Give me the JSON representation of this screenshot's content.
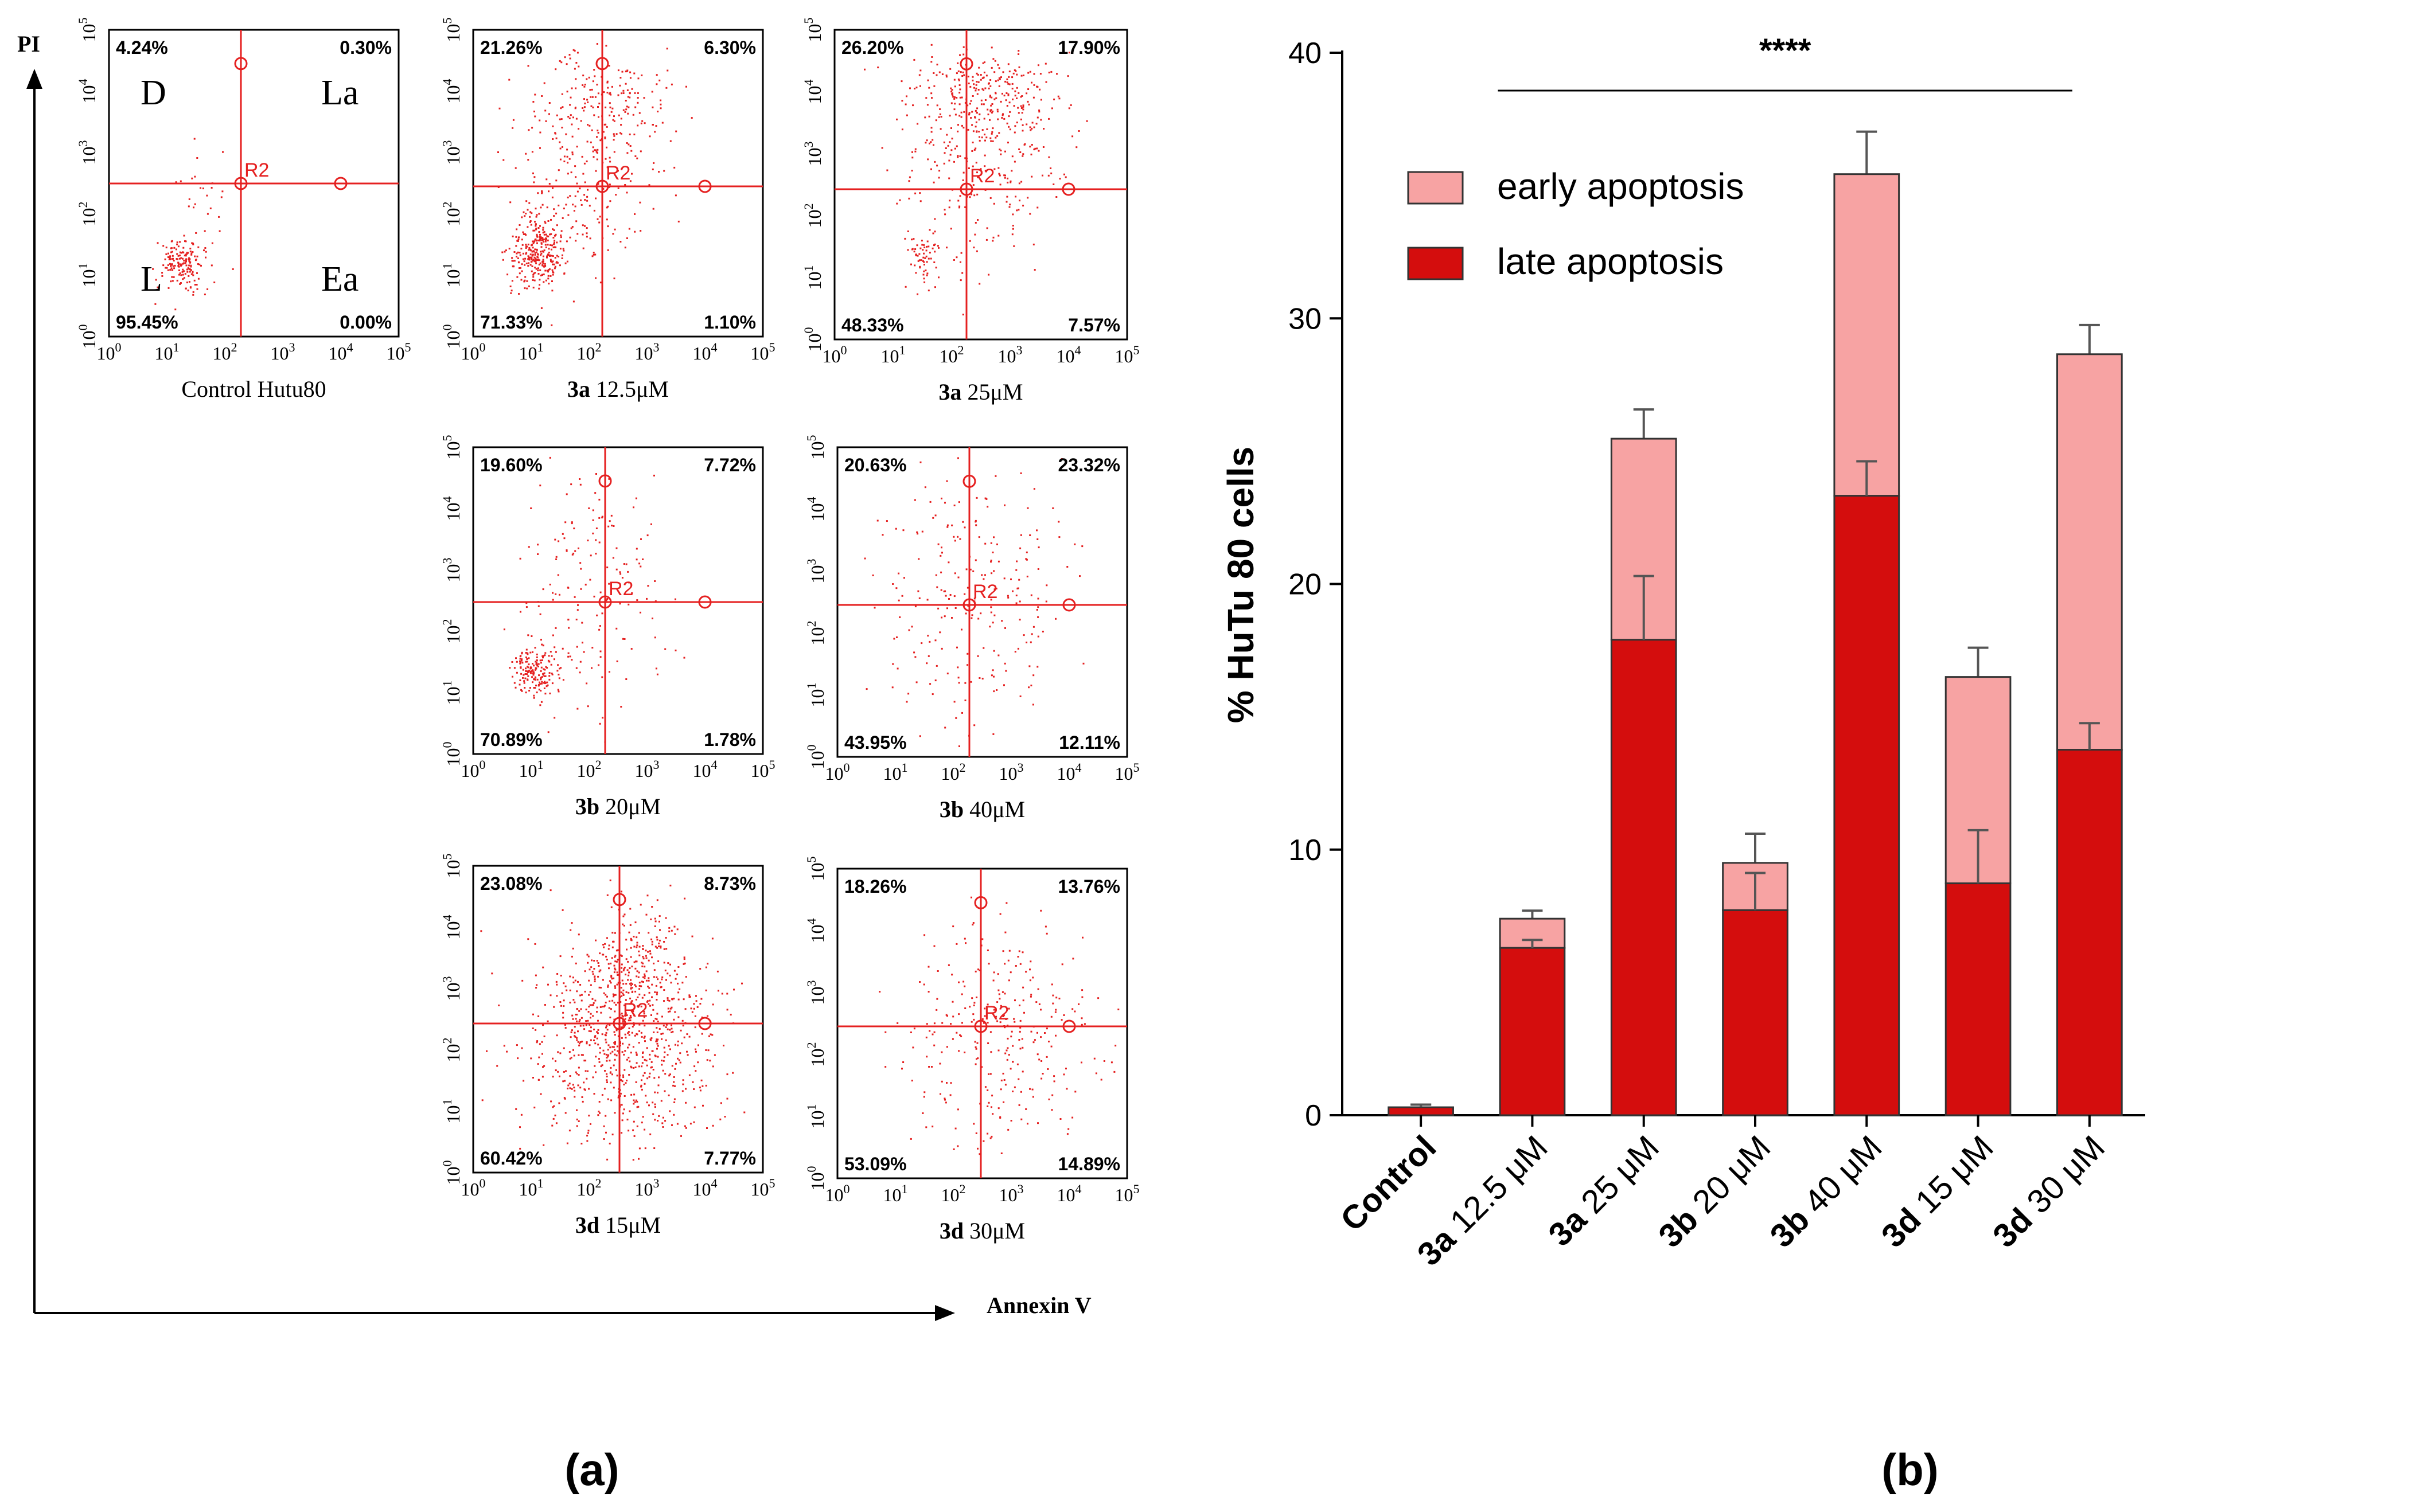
{
  "figure": {
    "panel_a_label": "(a)",
    "panel_b_label": "(b)",
    "axis_y_name": "PI",
    "axis_x_name": "Annexin V",
    "control_quadrant_labels": {
      "tl": "D",
      "tr": "La",
      "bl": "L",
      "br": "Ea"
    },
    "gate_label": "R2",
    "log_ticks": [
      "0",
      "1",
      "2",
      "3",
      "4",
      "5"
    ],
    "panels": [
      {
        "id": "control",
        "caption_bold": "",
        "caption": "Control Hutu80",
        "tl": "4.24%",
        "tr": "0.30%",
        "bl": "95.45%",
        "br": "0.00%"
      },
      {
        "id": "3a-12",
        "caption_bold": "3a",
        "caption": "12.5μM",
        "tl": "21.26%",
        "tr": "6.30%",
        "bl": "71.33%",
        "br": "1.10%"
      },
      {
        "id": "3a-25",
        "caption_bold": "3a",
        "caption": "25μM",
        "tl": "26.20%",
        "tr": "17.90%",
        "bl": "48.33%",
        "br": "7.57%"
      },
      {
        "id": "3b-20",
        "caption_bold": "3b",
        "caption": "20μM",
        "tl": "19.60%",
        "tr": "7.72%",
        "bl": "70.89%",
        "br": "1.78%"
      },
      {
        "id": "3b-40",
        "caption_bold": "3b",
        "caption": "40μM",
        "tl": "20.63%",
        "tr": "23.32%",
        "bl": "43.95%",
        "br": "12.11%"
      },
      {
        "id": "3d-15",
        "caption_bold": "3d",
        "caption": "15μM",
        "tl": "23.08%",
        "tr": "8.73%",
        "bl": "60.42%",
        "br": "7.77%"
      },
      {
        "id": "3d-30",
        "caption_bold": "3d",
        "caption": "30μM",
        "tl": "18.26%",
        "tr": "13.76%",
        "bl": "53.09%",
        "br": "14.89%"
      }
    ]
  },
  "colors": {
    "late": "#d40d0d",
    "early": "#f7a3a3",
    "dots": "#e52020",
    "gate": "#e52020",
    "axis": "#000000"
  },
  "chart_data": {
    "type": "bar",
    "stacked": true,
    "title": "",
    "xlabel": "",
    "ylabel": "% HuTu 80 cells",
    "ylim": [
      0,
      40
    ],
    "yticks": [
      0,
      10,
      20,
      30,
      40
    ],
    "significance": "****",
    "legend_position": "top-left",
    "categories": [
      {
        "bold": "Control",
        "rest": ""
      },
      {
        "bold": "3a",
        "rest": " 12.5 μM"
      },
      {
        "bold": "3a",
        "rest": " 25 μM"
      },
      {
        "bold": "3b",
        "rest": " 20 μM"
      },
      {
        "bold": "3b",
        "rest": " 40 μM"
      },
      {
        "bold": "3d",
        "rest": " 15 μM"
      },
      {
        "bold": "3d",
        "rest": " 30 μM"
      }
    ],
    "series": [
      {
        "name": "late apoptosis",
        "values": [
          0.3,
          6.3,
          17.9,
          7.72,
          23.32,
          8.73,
          13.76
        ],
        "errors": [
          0.1,
          0.3,
          2.4,
          1.4,
          1.3,
          2.0,
          1.0
        ]
      },
      {
        "name": "early apoptosis",
        "values": [
          0.0,
          1.1,
          7.57,
          1.78,
          12.11,
          7.77,
          14.89
        ],
        "errors": [
          0.1,
          0.3,
          1.1,
          1.1,
          1.6,
          1.1,
          1.1
        ]
      }
    ],
    "legend": [
      "early apoptosis",
      "late apoptosis"
    ]
  }
}
